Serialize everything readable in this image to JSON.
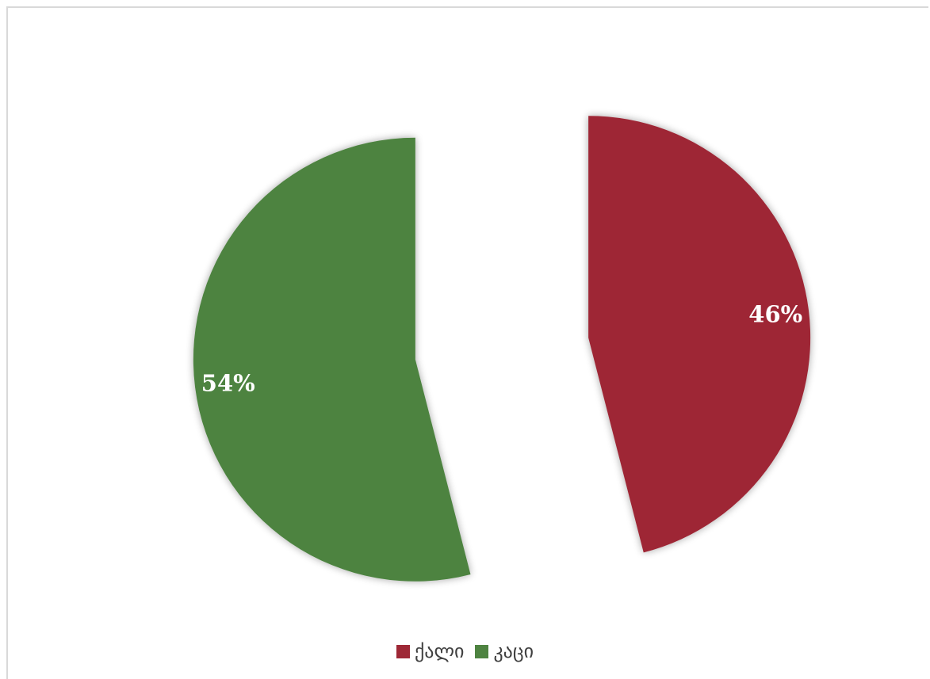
{
  "chart_data": {
    "type": "pie",
    "categories": [
      "ქალი",
      "კაცი"
    ],
    "values": [
      46,
      54
    ],
    "value_labels": [
      "46%",
      "54%"
    ],
    "colors": [
      "#9e2836",
      "#4e8341"
    ],
    "exploded": true,
    "legend": {
      "position": "bottom",
      "entries": [
        "ქალი",
        "კაცი"
      ]
    }
  }
}
